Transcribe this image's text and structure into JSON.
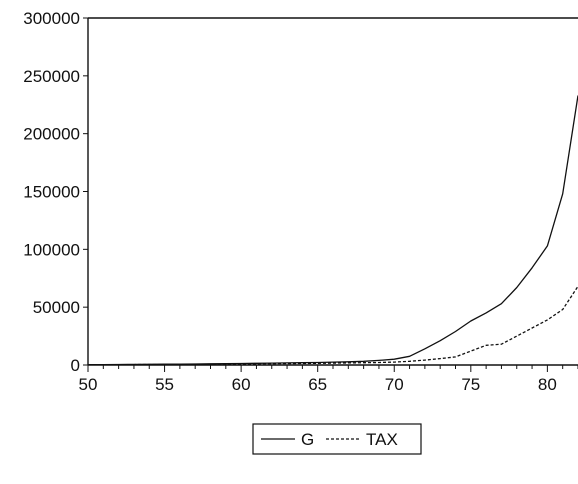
{
  "chart_data": {
    "type": "line",
    "title": "",
    "xlabel": "",
    "ylabel": "",
    "xlim": [
      50,
      82
    ],
    "ylim": [
      0,
      300000
    ],
    "x_ticks": [
      "50",
      "55",
      "60",
      "65",
      "70",
      "75",
      "80"
    ],
    "y_ticks": [
      "0",
      "50000",
      "100000",
      "150000",
      "200000",
      "250000",
      "300000"
    ],
    "grid": false,
    "legend_position": "bottom-center",
    "series": [
      {
        "name": "G",
        "style": "solid",
        "color": "#111111",
        "x": [
          50,
          51,
          52,
          53,
          54,
          55,
          56,
          57,
          58,
          59,
          60,
          61,
          62,
          63,
          64,
          65,
          66,
          67,
          68,
          69,
          70,
          71,
          72,
          73,
          74,
          75,
          76,
          77,
          78,
          79,
          80,
          81,
          82
        ],
        "y": [
          300,
          350,
          450,
          550,
          600,
          700,
          800,
          900,
          1000,
          1150,
          1300,
          1450,
          1600,
          1800,
          2000,
          2200,
          2500,
          2800,
          3200,
          4000,
          5000,
          7500,
          14000,
          21000,
          29000,
          38000,
          45000,
          53000,
          67000,
          84000,
          103000,
          148000,
          233000
        ]
      },
      {
        "name": "TAX",
        "style": "dashed",
        "color": "#111111",
        "x": [
          50,
          51,
          52,
          53,
          54,
          55,
          56,
          57,
          58,
          59,
          60,
          61,
          62,
          63,
          64,
          65,
          66,
          67,
          68,
          69,
          70,
          71,
          72,
          73,
          74,
          75,
          76,
          77,
          78,
          79,
          80,
          81,
          82
        ],
        "y": [
          200,
          250,
          300,
          350,
          400,
          450,
          500,
          600,
          700,
          800,
          900,
          1000,
          1100,
          1200,
          1300,
          1450,
          1600,
          1800,
          2000,
          2200,
          2500,
          3200,
          4200,
          5500,
          7000,
          12000,
          17000,
          18000,
          25000,
          32000,
          39000,
          48000,
          68000
        ]
      }
    ]
  }
}
